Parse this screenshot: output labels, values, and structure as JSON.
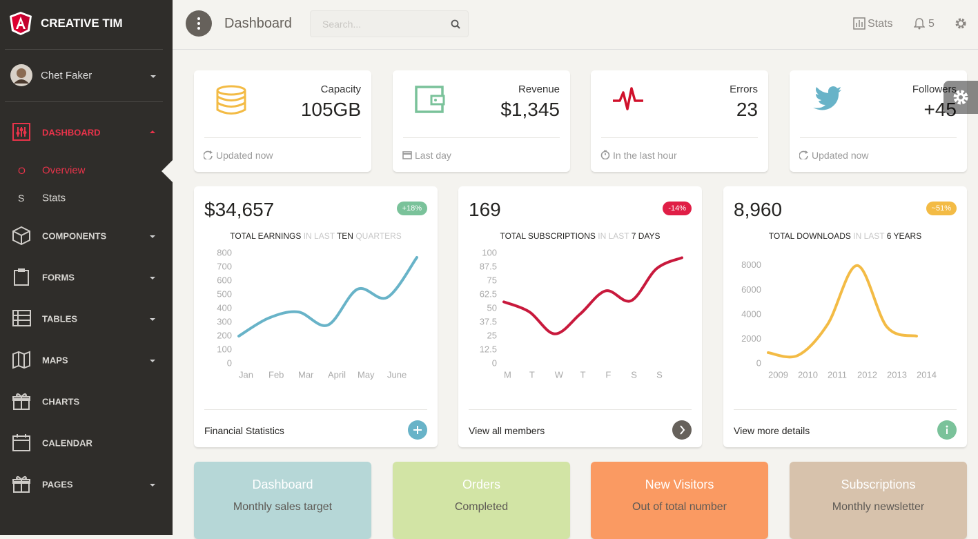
{
  "sidebar": {
    "brand": "CREATIVE TIM",
    "user": "Chet Faker",
    "menu": [
      {
        "label": "DASHBOARD",
        "active": true,
        "dropdown": true
      },
      {
        "label": "COMPONENTS",
        "active": false,
        "dropdown": true
      },
      {
        "label": "FORMS",
        "active": false,
        "dropdown": true
      },
      {
        "label": "TABLES",
        "active": false,
        "dropdown": true
      },
      {
        "label": "MAPS",
        "active": false,
        "dropdown": true
      },
      {
        "label": "CHARTS",
        "active": false,
        "dropdown": false
      },
      {
        "label": "CALENDAR",
        "active": false,
        "dropdown": false
      },
      {
        "label": "PAGES",
        "active": false,
        "dropdown": true
      }
    ],
    "submenu": [
      {
        "abbr": "O",
        "label": "Overview",
        "active": true
      },
      {
        "abbr": "S",
        "label": "Stats",
        "active": false
      }
    ]
  },
  "navbar": {
    "title": "Dashboard",
    "search_placeholder": "Search...",
    "stats": "Stats",
    "notifications": "5"
  },
  "stat_cards": [
    {
      "label": "Capacity",
      "value": "105GB",
      "footer": "Updated now"
    },
    {
      "label": "Revenue",
      "value": "$1,345",
      "footer": "Last day"
    },
    {
      "label": "Errors",
      "value": "23",
      "footer": "In the last hour"
    },
    {
      "label": "Followers",
      "value": "+45",
      "footer": "Updated now"
    }
  ],
  "charts": [
    {
      "type": "line",
      "value": "$34,657",
      "badge": "+18%",
      "badge_color": "#7ac29a",
      "subtitle": [
        {
          "text": "TOTAL EARNINGS",
          "muted": false
        },
        {
          "text": "IN LAST",
          "muted": true
        },
        {
          "text": "TEN",
          "muted": false
        },
        {
          "text": "QUARTERS",
          "muted": true
        }
      ],
      "categories": [
        "Jan",
        "Feb",
        "Mar",
        "April",
        "May",
        "June",
        null
      ],
      "values": [
        200,
        330,
        375,
        280,
        540,
        480,
        770
      ],
      "color": "#68b3c8",
      "ylim": [
        0,
        800
      ],
      "yticks": [
        0,
        100,
        200,
        300,
        400,
        500,
        600,
        700,
        800
      ],
      "footer": "Financial Statistics",
      "button_color": "#68b3c8"
    },
    {
      "type": "line",
      "value": "169",
      "badge": "-14%",
      "badge_color": "#e01e46",
      "subtitle": [
        {
          "text": "TOTAL SUBSCRIPTIONS",
          "muted": false
        },
        {
          "text": "IN LAST",
          "muted": true
        },
        {
          "text": "7 DAYS",
          "muted": false
        }
      ],
      "categories": [
        "M",
        "T",
        "W",
        "T",
        "F",
        "S",
        "S",
        null
      ],
      "values": [
        56,
        47,
        27,
        45,
        66,
        57,
        86,
        96
      ],
      "color": "#c8193c",
      "ylim": [
        0,
        100
      ],
      "yticks": [
        0,
        12.5,
        25,
        37.5,
        50,
        62.5,
        75,
        87.5,
        100
      ],
      "footer": "View all members",
      "button_color": "#66615b"
    },
    {
      "type": "line",
      "value": "8,960",
      "badge": "~51%",
      "badge_color": "#f3bb45",
      "subtitle": [
        {
          "text": "TOTAL DOWNLOADS",
          "muted": false
        },
        {
          "text": "IN LAST",
          "muted": true
        },
        {
          "text": "6 YEARS",
          "muted": false
        }
      ],
      "categories": [
        "2009",
        "2010",
        "2011",
        "2012",
        "2013",
        "2014"
      ],
      "values": [
        900,
        675,
        3200,
        8000,
        3000,
        2250
      ],
      "color": "#f3bb45",
      "ylim": [
        0,
        9000
      ],
      "yticks": [
        0,
        2000,
        4000,
        6000,
        8000
      ],
      "footer": "View more details",
      "button_color": "#7ac29a"
    }
  ],
  "summary_cards": [
    {
      "title": "Dashboard",
      "subtitle": "Monthly sales target",
      "color": "#b6d7d7"
    },
    {
      "title": "Orders",
      "subtitle": "Completed",
      "color": "#d2e4a5"
    },
    {
      "title": "New Visitors",
      "subtitle": "Out of total number",
      "color": "#fa9a62"
    },
    {
      "title": "Subscriptions",
      "subtitle": "Monthly newsletter",
      "color": "#d7c2ac"
    }
  ]
}
